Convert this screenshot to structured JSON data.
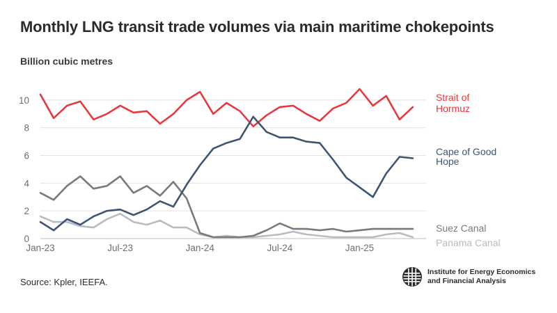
{
  "title": "Monthly LNG transit trade volumes via main maritime chokepoints",
  "source": "Source: Kpler, IEEFA.",
  "logo": {
    "line1": "Institute for Energy Economics",
    "line2": "and Financial Analysis"
  },
  "chart_data": {
    "type": "line",
    "title": "Monthly LNG transit trade volumes via main maritime chokepoints",
    "ylabel": "Billion cubic metres",
    "xlabel": "",
    "ylim": [
      0,
      11
    ],
    "yticks": [
      0,
      2,
      4,
      6,
      8,
      10
    ],
    "x_months": 30,
    "xticks": [
      {
        "index": 0,
        "label": "Jan-23"
      },
      {
        "index": 6,
        "label": "Jul-23"
      },
      {
        "index": 12,
        "label": "Jan-24"
      },
      {
        "index": 18,
        "label": "Jul-24"
      },
      {
        "index": 24,
        "label": "Jan-25"
      }
    ],
    "series": [
      {
        "name": "Strait of Hormuz",
        "label_lines": [
          "Strait of",
          "Hormuz"
        ],
        "color": "#e8383d",
        "values": [
          10.4,
          8.7,
          9.6,
          9.9,
          8.6,
          9.0,
          9.6,
          9.1,
          9.2,
          8.3,
          9.0,
          10.0,
          10.6,
          9.0,
          9.8,
          9.2,
          8.1,
          8.9,
          9.5,
          9.6,
          9.0,
          8.5,
          9.4,
          9.8,
          10.8,
          9.6,
          10.3,
          8.6,
          9.5
        ]
      },
      {
        "name": "Cape of Good Hope",
        "label_lines": [
          "Cape of Good",
          "Hope"
        ],
        "color": "#3d5570",
        "values": [
          1.2,
          0.6,
          1.4,
          1.0,
          1.6,
          2.0,
          2.1,
          1.7,
          2.1,
          2.7,
          2.3,
          3.9,
          5.3,
          6.5,
          6.9,
          7.2,
          8.8,
          7.7,
          7.3,
          7.3,
          7.0,
          6.9,
          5.7,
          4.4,
          3.7,
          3.0,
          4.7,
          5.9,
          5.8
        ]
      },
      {
        "name": "Suez Canal",
        "label_lines": [
          "Suez Canal"
        ],
        "color": "#7a7a7a",
        "values": [
          3.3,
          2.8,
          3.8,
          4.5,
          3.6,
          3.8,
          4.5,
          3.3,
          3.8,
          3.1,
          4.1,
          2.9,
          0.4,
          0.1,
          0.1,
          0.1,
          0.2,
          0.6,
          1.1,
          0.7,
          0.7,
          0.6,
          0.7,
          0.5,
          0.6,
          0.7,
          0.7,
          0.7,
          0.7
        ]
      },
      {
        "name": "Panama Canal",
        "label_lines": [
          "Panama Canal"
        ],
        "color": "#b5bcc4",
        "values": [
          1.6,
          1.2,
          1.2,
          0.9,
          0.8,
          1.4,
          1.8,
          1.2,
          1.0,
          1.3,
          0.8,
          0.8,
          0.3,
          0.1,
          0.2,
          0.1,
          0.1,
          0.2,
          0.3,
          0.5,
          0.3,
          0.2,
          0.1,
          0.1,
          0.1,
          0.1,
          0.3,
          0.4,
          0.1
        ]
      }
    ]
  }
}
